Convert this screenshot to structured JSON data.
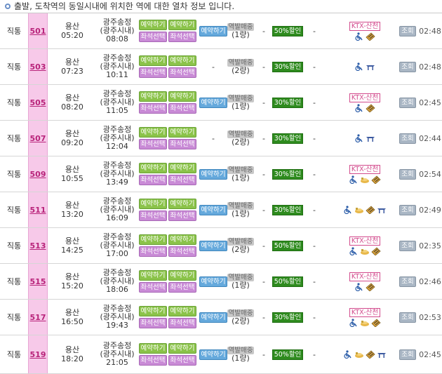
{
  "header": {
    "title": "출발, 도착역의 동일시내에 위치한 역에 대한 열차 정보 입니다."
  },
  "labels": {
    "reserve": "예약하기",
    "seat": "좌석선택",
    "reserve_blue": "예약하기",
    "inquiry": "조회",
    "dash": "-"
  },
  "colors": {
    "train_no_bg": "#f7c9e9",
    "green_btn": "#8bc34a",
    "purple_btn": "#c98bd6",
    "blue_btn": "#65a9dc",
    "discount_bg": "#2e8b1e",
    "ktx_border": "#d24a8c"
  },
  "rows": [
    {
      "type": "직통",
      "no": "501",
      "dep_station": "용산",
      "dep_time": "05:20",
      "arr_line1": "광주송정",
      "arr_line2": "(광주시내)",
      "arr_time": "08:08",
      "st_line1": "역발매중",
      "st_line2": "(1량)",
      "discount": "50%할인",
      "ktx": "KTX-산천",
      "icons": [
        "wheelchair-icon",
        "ticket-icon"
      ],
      "duration": "02:48"
    },
    {
      "type": "직통",
      "no": "503",
      "dep_station": "용산",
      "dep_time": "07:23",
      "arr_line1": "광주송정",
      "arr_line2": "(광주시내)",
      "arr_time": "10:11",
      "st_line1": "역발매중",
      "st_line2": "(2량)",
      "discount": "30%할인",
      "ktx": "",
      "icons": [
        "wheelchair-icon",
        "table-icon"
      ],
      "duration": "02:48"
    },
    {
      "type": "직통",
      "no": "505",
      "dep_station": "용산",
      "dep_time": "08:20",
      "arr_line1": "광주송정",
      "arr_line2": "(광주시내)",
      "arr_time": "11:05",
      "st_line1": "역발매중",
      "st_line2": "(1량)",
      "discount": "30%할인",
      "ktx": "KTX-산천",
      "icons": [
        "wheelchair-icon",
        "ticket-icon"
      ],
      "duration": "02:45"
    },
    {
      "type": "직통",
      "no": "507",
      "dep_station": "용산",
      "dep_time": "09:20",
      "arr_line1": "광주송정",
      "arr_line2": "(광주시내)",
      "arr_time": "12:04",
      "st_line1": "역발매중",
      "st_line2": "(2량)",
      "discount": "30%할인",
      "ktx": "",
      "icons": [
        "wheelchair-icon",
        "table-icon"
      ],
      "duration": "02:44"
    },
    {
      "type": "직통",
      "no": "509",
      "dep_station": "용산",
      "dep_time": "10:55",
      "arr_line1": "광주송정",
      "arr_line2": "(광주시내)",
      "arr_time": "13:49",
      "st_line1": "역발매중",
      "st_line2": "(1량)",
      "discount": "30%할인",
      "ktx": "KTX-산천",
      "icons": [
        "wheelchair-icon",
        "shopping-icon",
        "ticket-icon"
      ],
      "duration": "02:54"
    },
    {
      "type": "직통",
      "no": "511",
      "dep_station": "용산",
      "dep_time": "13:20",
      "arr_line1": "광주송정",
      "arr_line2": "(광주시내)",
      "arr_time": "16:09",
      "st_line1": "역발매중",
      "st_line2": "(1량)",
      "discount": "30%할인",
      "ktx": "",
      "icons": [
        "wheelchair-icon",
        "shopping-icon",
        "ticket-icon",
        "table-icon"
      ],
      "duration": "02:49"
    },
    {
      "type": "직통",
      "no": "513",
      "dep_station": "용산",
      "dep_time": "14:25",
      "arr_line1": "광주송정",
      "arr_line2": "(광주시내)",
      "arr_time": "17:00",
      "st_line1": "역발매중",
      "st_line2": "(2량)",
      "discount": "50%할인",
      "ktx": "KTX-산천",
      "icons": [
        "wheelchair-icon",
        "shopping-icon",
        "ticket-icon"
      ],
      "duration": "02:35"
    },
    {
      "type": "직통",
      "no": "515",
      "dep_station": "용산",
      "dep_time": "15:20",
      "arr_line1": "광주송정",
      "arr_line2": "(광주시내)",
      "arr_time": "18:06",
      "st_line1": "역발매중",
      "st_line2": "(1량)",
      "discount": "50%할인",
      "ktx": "KTX-산천",
      "icons": [
        "wheelchair-icon",
        "ticket-icon"
      ],
      "duration": "02:46"
    },
    {
      "type": "직통",
      "no": "517",
      "dep_station": "용산",
      "dep_time": "16:50",
      "arr_line1": "광주송정",
      "arr_line2": "(광주시내)",
      "arr_time": "19:43",
      "st_line1": "역발매중",
      "st_line2": "(2량)",
      "discount": "30%할인",
      "ktx": "KTX-산천",
      "icons": [
        "wheelchair-icon",
        "shopping-icon",
        "ticket-icon"
      ],
      "duration": "02:53"
    },
    {
      "type": "직통",
      "no": "519",
      "dep_station": "용산",
      "dep_time": "18:20",
      "arr_line1": "광주송정",
      "arr_line2": "(광주시내)",
      "arr_time": "21:05",
      "st_line1": "역발매중",
      "st_line2": "(1량)",
      "discount": "50%할인",
      "ktx": "",
      "icons": [
        "wheelchair-icon",
        "shopping-icon",
        "ticket-icon",
        "table-icon"
      ],
      "duration": "02:45"
    }
  ]
}
